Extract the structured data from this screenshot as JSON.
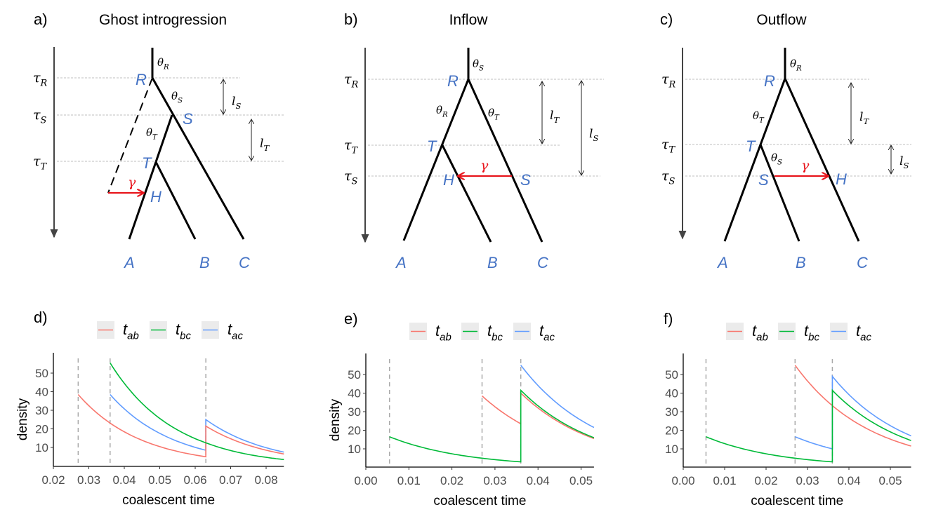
{
  "diagrams": [
    {
      "letter": "a)",
      "title": "Ghost introgression",
      "taus": [
        {
          "sym": "τ",
          "sub": "R"
        },
        {
          "sym": "τ",
          "sub": "S"
        },
        {
          "sym": "τ",
          "sub": "T"
        }
      ],
      "nodes": [
        "R",
        "S",
        "T",
        "H"
      ],
      "tips": [
        "A",
        "B",
        "C"
      ],
      "gamma": "γ",
      "thetas": [
        {
          "sym": "θ",
          "sub": "R"
        },
        {
          "sym": "θ",
          "sub": "S"
        },
        {
          "sym": "θ",
          "sub": "T"
        }
      ],
      "lengths": [
        {
          "sym": "l",
          "sub": "S"
        },
        {
          "sym": "l",
          "sub": "T"
        }
      ]
    },
    {
      "letter": "b)",
      "title": "Inflow",
      "taus": [
        {
          "sym": "τ",
          "sub": "R"
        },
        {
          "sym": "τ",
          "sub": "T"
        },
        {
          "sym": "τ",
          "sub": "S"
        }
      ],
      "nodes": [
        "R",
        "T",
        "H",
        "S"
      ],
      "tips": [
        "A",
        "B",
        "C"
      ],
      "gamma": "γ",
      "thetas": [
        {
          "sym": "θ",
          "sub": "R"
        },
        {
          "sym": "θ",
          "sub": "T"
        },
        {
          "sym": "θ",
          "sub": "S"
        }
      ],
      "lengths": [
        {
          "sym": "l",
          "sub": "T"
        },
        {
          "sym": "l",
          "sub": "S"
        }
      ]
    },
    {
      "letter": "c)",
      "title": "Outflow",
      "taus": [
        {
          "sym": "τ",
          "sub": "R"
        },
        {
          "sym": "τ",
          "sub": "T"
        },
        {
          "sym": "τ",
          "sub": "S"
        }
      ],
      "nodes": [
        "R",
        "T",
        "S",
        "H"
      ],
      "tips": [
        "A",
        "B",
        "C"
      ],
      "gamma": "γ",
      "thetas": [
        {
          "sym": "θ",
          "sub": "R"
        },
        {
          "sym": "θ",
          "sub": "T"
        },
        {
          "sym": "θ",
          "sub": "S"
        }
      ],
      "lengths": [
        {
          "sym": "l",
          "sub": "T"
        },
        {
          "sym": "l",
          "sub": "S"
        }
      ]
    }
  ],
  "colors": {
    "node_label": "#4472C4",
    "introgression": "#E8141B",
    "t_ab": "#F8766D",
    "t_bc": "#00BA38",
    "t_ac": "#619CFF"
  },
  "chart_data": [
    {
      "type": "line",
      "label": "d)",
      "legend": [
        {
          "sym": "t",
          "sub": "ab",
          "key": "t_ab"
        },
        {
          "sym": "t",
          "sub": "bc",
          "key": "t_bc"
        },
        {
          "sym": "t",
          "sub": "ac",
          "key": "t_ac"
        }
      ],
      "xlabel": "coalescent time",
      "ylabel": "density",
      "xlim": [
        0.02,
        0.085
      ],
      "ylim": [
        0,
        58
      ],
      "xticks": [
        "0.02",
        "0.03",
        "0.04",
        "0.05",
        "0.06",
        "0.07",
        "0.08"
      ],
      "yticks": [
        "10",
        "20",
        "30",
        "40",
        "50"
      ],
      "vlines": [
        0.027,
        0.036,
        0.063
      ],
      "series": [
        {
          "name": "t_ac",
          "segments": [
            [
              0.036,
              38.5,
              0.063,
              8.5
            ],
            [
              0.063,
              25,
              0.085,
              7.5
            ]
          ]
        },
        {
          "name": "t_ab",
          "segments": [
            [
              0.027,
              38.5,
              0.063,
              5
            ],
            [
              0.063,
              21.5,
              0.085,
              6.5
            ]
          ]
        },
        {
          "name": "t_bc",
          "segments": [
            [
              0.036,
              55.5,
              0.063,
              12.5
            ],
            [
              0.063,
              12.5,
              0.085,
              3.5
            ]
          ]
        }
      ]
    },
    {
      "type": "line",
      "label": "e)",
      "legend": [
        {
          "sym": "t",
          "sub": "ab",
          "key": "t_ab"
        },
        {
          "sym": "t",
          "sub": "bc",
          "key": "t_bc"
        },
        {
          "sym": "t",
          "sub": "ac",
          "key": "t_ac"
        }
      ],
      "xlabel": "coalescent time",
      "ylabel": "density",
      "xlim": [
        0,
        0.053
      ],
      "ylim": [
        0,
        58
      ],
      "xticks": [
        "0.00",
        "0.01",
        "0.02",
        "0.03",
        "0.04",
        "0.05"
      ],
      "yticks": [
        "10",
        "20",
        "30",
        "40",
        "50"
      ],
      "vlines": [
        0.0055,
        0.027,
        0.036
      ],
      "series": [
        {
          "name": "t_ac",
          "segments": [
            [
              0.036,
              55,
              0.053,
              21.5
            ]
          ]
        },
        {
          "name": "t_ab",
          "segments": [
            [
              0.027,
              38.5,
              0.036,
              23.5
            ],
            [
              0.036,
              40,
              0.053,
              15.5
            ]
          ]
        },
        {
          "name": "t_bc",
          "segments": [
            [
              0.0055,
              16.5,
              0.036,
              3
            ],
            [
              0.036,
              41.5,
              0.053,
              16
            ]
          ]
        }
      ]
    },
    {
      "type": "line",
      "label": "f)",
      "legend": [
        {
          "sym": "t",
          "sub": "ab",
          "key": "t_ab"
        },
        {
          "sym": "t",
          "sub": "bc",
          "key": "t_bc"
        },
        {
          "sym": "t",
          "sub": "ac",
          "key": "t_ac"
        }
      ],
      "xlabel": "coalescent time",
      "ylabel": "",
      "xlim": [
        0,
        0.055
      ],
      "ylim": [
        0,
        58
      ],
      "xticks": [
        "0.00",
        "0.01",
        "0.02",
        "0.03",
        "0.04",
        "0.05"
      ],
      "yticks": [
        "10",
        "20",
        "30",
        "40",
        "50"
      ],
      "vlines": [
        0.0055,
        0.027,
        0.036
      ],
      "series": [
        {
          "name": "t_ac",
          "segments": [
            [
              0.027,
              16.5,
              0.036,
              10
            ],
            [
              0.036,
              49,
              0.055,
              17
            ]
          ]
        },
        {
          "name": "t_ab",
          "segments": [
            [
              0.027,
              55,
              0.055,
              11.5
            ]
          ]
        },
        {
          "name": "t_bc",
          "segments": [
            [
              0.0055,
              16.5,
              0.036,
              3
            ],
            [
              0.036,
              41.5,
              0.055,
              14.5
            ]
          ]
        }
      ]
    }
  ]
}
